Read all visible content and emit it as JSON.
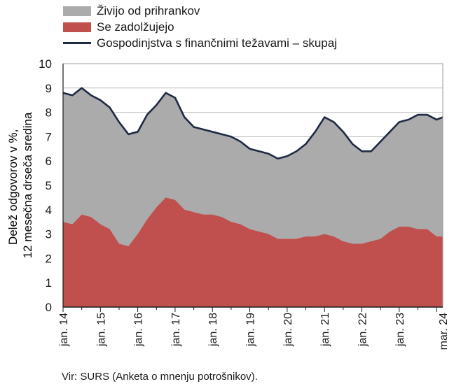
{
  "chart_data": {
    "type": "area",
    "ylabel_lines": [
      "Delež odgovorov v %,",
      "12 mesečna drseča sredina"
    ],
    "source": "Vir: SURS (Anketa o mnenju potrošnikov).",
    "ylim": [
      0,
      10
    ],
    "yticks": [
      0,
      1,
      2,
      3,
      4,
      5,
      6,
      7,
      8,
      9,
      10
    ],
    "grid": true,
    "legend_position": "top-left",
    "xrange": [
      "2014-01",
      "2024-03"
    ],
    "xticks": [
      {
        "label": "jan. 14",
        "date": "2014-01"
      },
      {
        "label": "jan. 15",
        "date": "2015-01"
      },
      {
        "label": "jan. 16",
        "date": "2016-01"
      },
      {
        "label": "jan. 17",
        "date": "2017-01"
      },
      {
        "label": "jan. 18",
        "date": "2018-01"
      },
      {
        "label": "jan. 19",
        "date": "2019-01"
      },
      {
        "label": "jan. 20",
        "date": "2020-01"
      },
      {
        "label": "jan. 21",
        "date": "2021-01"
      },
      {
        "label": "jan. 22",
        "date": "2022-01"
      },
      {
        "label": "jan. 23",
        "date": "2023-01"
      },
      {
        "label": "mar. 24",
        "date": "2024-03"
      }
    ],
    "series": [
      {
        "name": "Živijo od prihrankov",
        "kind": "area",
        "color": "#ababab",
        "points": [
          [
            "2014-01",
            8.8
          ],
          [
            "2014-04",
            8.7
          ],
          [
            "2014-07",
            9.0
          ],
          [
            "2014-10",
            8.7
          ],
          [
            "2015-01",
            8.5
          ],
          [
            "2015-04",
            8.2
          ],
          [
            "2015-07",
            7.6
          ],
          [
            "2015-10",
            7.1
          ],
          [
            "2016-01",
            7.2
          ],
          [
            "2016-04",
            7.9
          ],
          [
            "2016-07",
            8.3
          ],
          [
            "2016-10",
            8.8
          ],
          [
            "2017-01",
            8.6
          ],
          [
            "2017-04",
            7.8
          ],
          [
            "2017-07",
            7.4
          ],
          [
            "2017-10",
            7.3
          ],
          [
            "2018-01",
            7.2
          ],
          [
            "2018-04",
            7.1
          ],
          [
            "2018-07",
            7.0
          ],
          [
            "2018-10",
            6.8
          ],
          [
            "2019-01",
            6.5
          ],
          [
            "2019-04",
            6.4
          ],
          [
            "2019-07",
            6.3
          ],
          [
            "2019-10",
            6.1
          ],
          [
            "2020-01",
            6.2
          ],
          [
            "2020-04",
            6.4
          ],
          [
            "2020-07",
            6.7
          ],
          [
            "2020-10",
            7.2
          ],
          [
            "2021-01",
            7.8
          ],
          [
            "2021-04",
            7.6
          ],
          [
            "2021-07",
            7.2
          ],
          [
            "2021-10",
            6.7
          ],
          [
            "2022-01",
            6.4
          ],
          [
            "2022-04",
            6.4
          ],
          [
            "2022-07",
            6.8
          ],
          [
            "2022-10",
            7.2
          ],
          [
            "2023-01",
            7.6
          ],
          [
            "2023-04",
            7.7
          ],
          [
            "2023-07",
            7.9
          ],
          [
            "2023-10",
            7.9
          ],
          [
            "2024-01",
            7.7
          ],
          [
            "2024-03",
            7.8
          ]
        ]
      },
      {
        "name": "Se zadolžujejo",
        "kind": "area",
        "color": "#c0504d",
        "points": [
          [
            "2014-01",
            3.5
          ],
          [
            "2014-04",
            3.4
          ],
          [
            "2014-07",
            3.8
          ],
          [
            "2014-10",
            3.7
          ],
          [
            "2015-01",
            3.4
          ],
          [
            "2015-04",
            3.2
          ],
          [
            "2015-07",
            2.6
          ],
          [
            "2015-10",
            2.5
          ],
          [
            "2016-01",
            3.0
          ],
          [
            "2016-04",
            3.6
          ],
          [
            "2016-07",
            4.1
          ],
          [
            "2016-10",
            4.5
          ],
          [
            "2017-01",
            4.4
          ],
          [
            "2017-04",
            4.0
          ],
          [
            "2017-07",
            3.9
          ],
          [
            "2017-10",
            3.8
          ],
          [
            "2018-01",
            3.8
          ],
          [
            "2018-04",
            3.7
          ],
          [
            "2018-07",
            3.5
          ],
          [
            "2018-10",
            3.4
          ],
          [
            "2019-01",
            3.2
          ],
          [
            "2019-04",
            3.1
          ],
          [
            "2019-07",
            3.0
          ],
          [
            "2019-10",
            2.8
          ],
          [
            "2020-01",
            2.8
          ],
          [
            "2020-04",
            2.8
          ],
          [
            "2020-07",
            2.9
          ],
          [
            "2020-10",
            2.9
          ],
          [
            "2021-01",
            3.0
          ],
          [
            "2021-04",
            2.9
          ],
          [
            "2021-07",
            2.7
          ],
          [
            "2021-10",
            2.6
          ],
          [
            "2022-01",
            2.6
          ],
          [
            "2022-04",
            2.7
          ],
          [
            "2022-07",
            2.8
          ],
          [
            "2022-10",
            3.1
          ],
          [
            "2023-01",
            3.3
          ],
          [
            "2023-04",
            3.3
          ],
          [
            "2023-07",
            3.2
          ],
          [
            "2023-10",
            3.2
          ],
          [
            "2024-01",
            2.9
          ],
          [
            "2024-03",
            2.9
          ]
        ]
      },
      {
        "name": "Gospodinjstva s finančnimi težavami – skupaj",
        "kind": "line",
        "color": "#1f2a44",
        "same_as_series": 0
      }
    ]
  }
}
